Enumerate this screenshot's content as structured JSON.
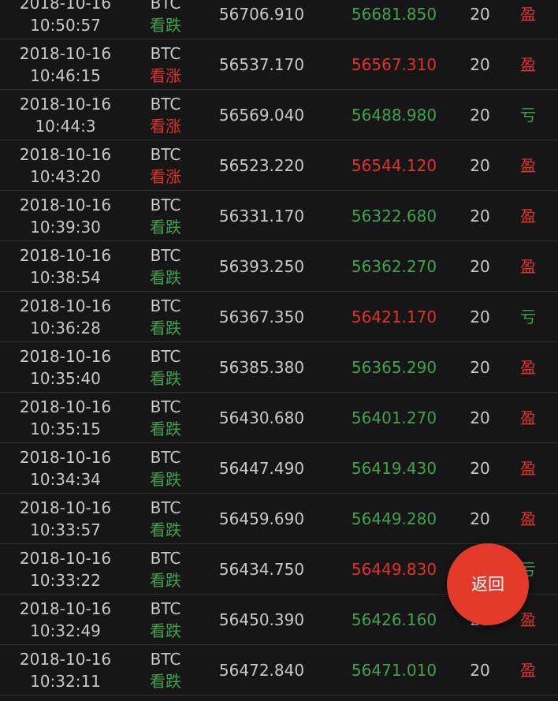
{
  "colors": {
    "background": "#161616",
    "up_red": "#e0322b",
    "down_green": "#3fa34d",
    "button": "#e43a2b"
  },
  "rows": [
    {
      "date": "2018-10-16",
      "time": "10:50:57",
      "symbol": "BTC",
      "direction": "看跌",
      "open": "56706.910",
      "close": "56681.850",
      "amount": "20",
      "result": "盈"
    },
    {
      "date": "2018-10-16",
      "time": "10:46:15",
      "symbol": "BTC",
      "direction": "看涨",
      "open": "56537.170",
      "close": "56567.310",
      "amount": "20",
      "result": "盈"
    },
    {
      "date": "2018-10-16",
      "time": "10:44:3",
      "symbol": "BTC",
      "direction": "看涨",
      "open": "56569.040",
      "close": "56488.980",
      "amount": "20",
      "result": "亏"
    },
    {
      "date": "2018-10-16",
      "time": "10:43:20",
      "symbol": "BTC",
      "direction": "看涨",
      "open": "56523.220",
      "close": "56544.120",
      "amount": "20",
      "result": "盈"
    },
    {
      "date": "2018-10-16",
      "time": "10:39:30",
      "symbol": "BTC",
      "direction": "看跌",
      "open": "56331.170",
      "close": "56322.680",
      "amount": "20",
      "result": "盈"
    },
    {
      "date": "2018-10-16",
      "time": "10:38:54",
      "symbol": "BTC",
      "direction": "看跌",
      "open": "56393.250",
      "close": "56362.270",
      "amount": "20",
      "result": "盈"
    },
    {
      "date": "2018-10-16",
      "time": "10:36:28",
      "symbol": "BTC",
      "direction": "看跌",
      "open": "56367.350",
      "close": "56421.170",
      "amount": "20",
      "result": "亏"
    },
    {
      "date": "2018-10-16",
      "time": "10:35:40",
      "symbol": "BTC",
      "direction": "看跌",
      "open": "56385.380",
      "close": "56365.290",
      "amount": "20",
      "result": "盈"
    },
    {
      "date": "2018-10-16",
      "time": "10:35:15",
      "symbol": "BTC",
      "direction": "看跌",
      "open": "56430.680",
      "close": "56401.270",
      "amount": "20",
      "result": "盈"
    },
    {
      "date": "2018-10-16",
      "time": "10:34:34",
      "symbol": "BTC",
      "direction": "看跌",
      "open": "56447.490",
      "close": "56419.430",
      "amount": "20",
      "result": "盈"
    },
    {
      "date": "2018-10-16",
      "time": "10:33:57",
      "symbol": "BTC",
      "direction": "看跌",
      "open": "56459.690",
      "close": "56449.280",
      "amount": "20",
      "result": "盈"
    },
    {
      "date": "2018-10-16",
      "time": "10:33:22",
      "symbol": "BTC",
      "direction": "看跌",
      "open": "56434.750",
      "close": "56449.830",
      "amount": "20",
      "result": "亏"
    },
    {
      "date": "2018-10-16",
      "time": "10:32:49",
      "symbol": "BTC",
      "direction": "看跌",
      "open": "56450.390",
      "close": "56426.160",
      "amount": "20",
      "result": "盈"
    },
    {
      "date": "2018-10-16",
      "time": "10:32:11",
      "symbol": "BTC",
      "direction": "看跌",
      "open": "56472.840",
      "close": "56471.010",
      "amount": "20",
      "result": "盈"
    }
  ],
  "back_button": {
    "label": "返回"
  }
}
